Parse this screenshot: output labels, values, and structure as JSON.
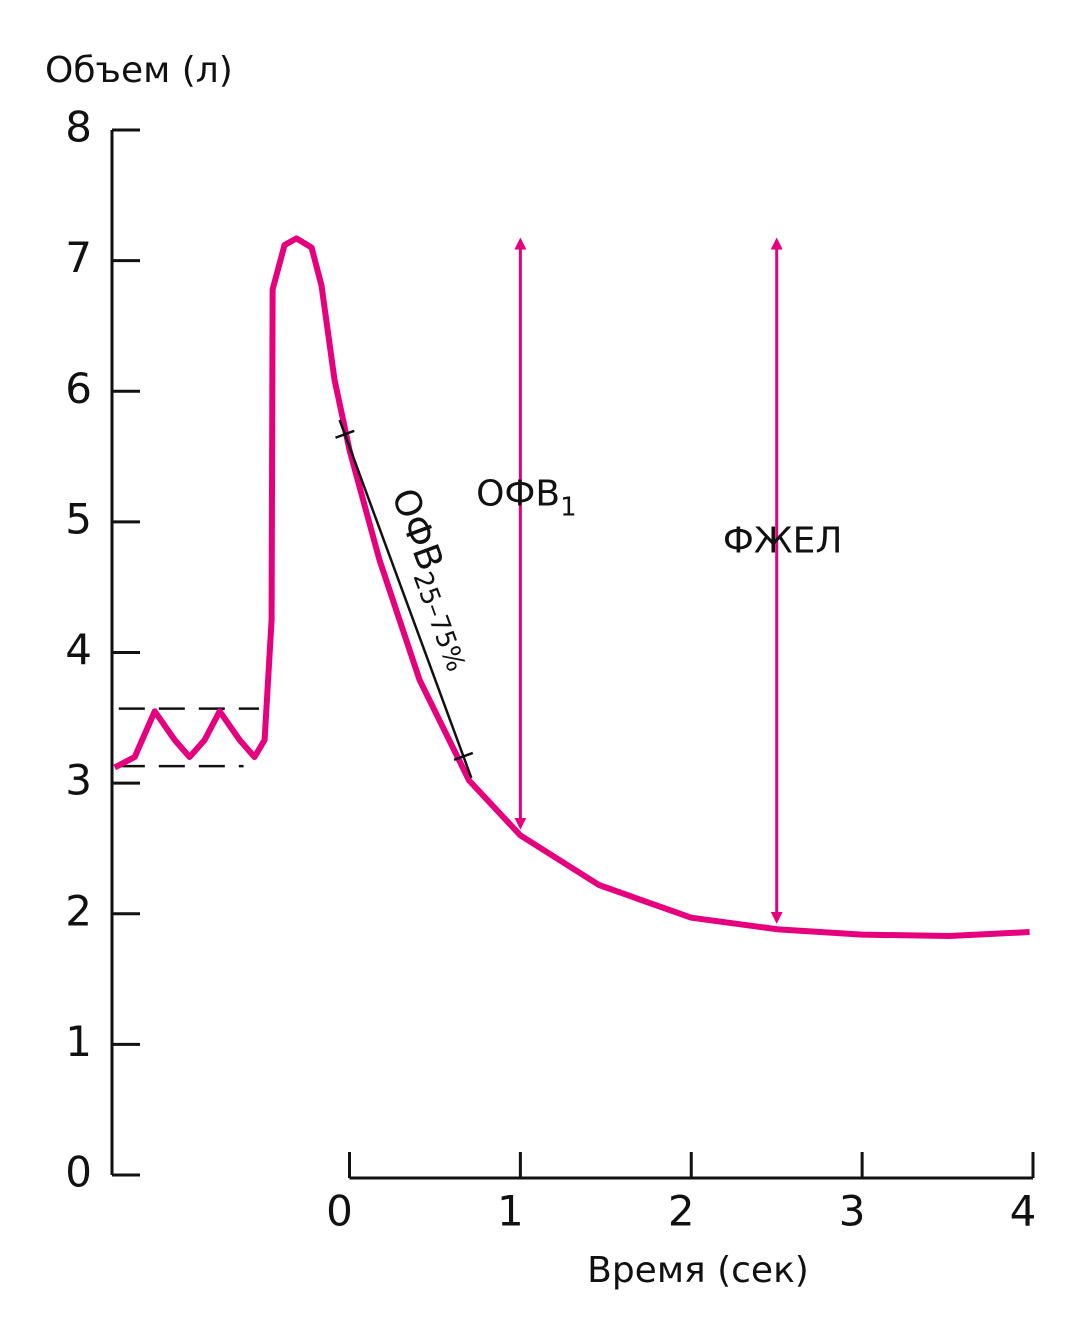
{
  "chart_data": {
    "type": "line",
    "y_label": "Объем (л)",
    "x_label": "Время (сек)",
    "xlim": [
      -1.39,
      4
    ],
    "ylim": [
      0,
      8
    ],
    "xticks": [
      0,
      1,
      2,
      3,
      4
    ],
    "yticks": [
      0,
      1,
      2,
      3,
      4,
      5,
      6,
      7,
      8
    ],
    "series": [
      {
        "color": "#e6007e",
        "x": [
          -1.374,
          -1.257,
          -1.14,
          -1.023,
          -0.936,
          -0.848,
          -0.76,
          -0.643,
          -0.556,
          -0.497,
          -0.456,
          -0.45,
          -0.38,
          -0.31,
          -0.222,
          -0.164,
          -0.088,
          0,
          0.175,
          0.41,
          0.7,
          1.0,
          1.46,
          2.0,
          2.51,
          3.0,
          3.51,
          3.98
        ],
        "values": [
          3.12,
          3.2,
          3.55,
          3.33,
          3.2,
          3.33,
          3.55,
          3.33,
          3.2,
          3.33,
          4.25,
          6.78,
          7.12,
          7.17,
          7.1,
          6.81,
          6.09,
          5.55,
          4.71,
          3.79,
          3.02,
          2.6,
          2.22,
          1.97,
          1.88,
          1.84,
          1.83,
          1.86
        ]
      }
    ],
    "dashed_lines": [
      {
        "y": 3.57,
        "x": [
          -1.35,
          -0.53
        ]
      },
      {
        "y": 3.13,
        "x": [
          -1.35,
          -0.62
        ]
      }
    ],
    "arrows": [
      {
        "label": "ОФВ",
        "subscript": "1",
        "x": 1.0,
        "y": [
          2.62,
          7.2
        ]
      },
      {
        "label": "ФЖЕЛ",
        "x": 2.5,
        "y": [
          1.9,
          7.2
        ]
      }
    ],
    "slope_line": {
      "label": "ОФВ",
      "subscript": "25–75%",
      "x": [
        -0.058,
        0.713
      ],
      "y": [
        5.78,
        3.04
      ]
    }
  }
}
